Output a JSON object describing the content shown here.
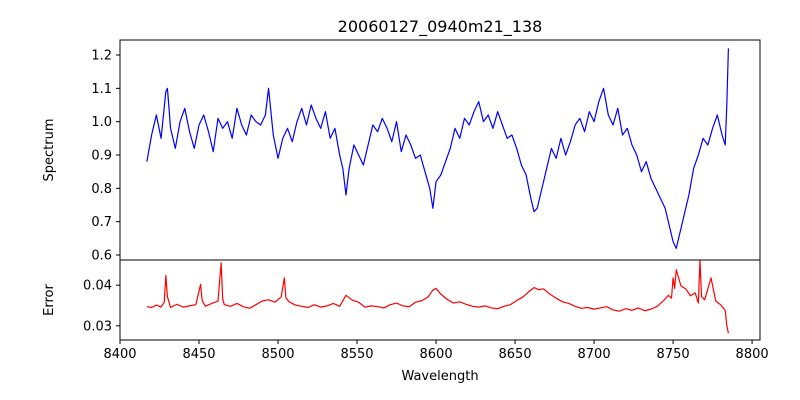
{
  "chart_data": {
    "type": "line",
    "title": "20060127_0940m21_138",
    "xlabel": "Wavelength",
    "xlim": [
      8400,
      8805
    ],
    "x_ticks": [
      "8400",
      "8450",
      "8500",
      "8550",
      "8600",
      "8650",
      "8700",
      "8750",
      "8800"
    ],
    "grid": false,
    "panels": [
      {
        "name": "spectrum-panel",
        "ylabel": "Spectrum",
        "ylim": [
          0.585,
          1.245
        ],
        "y_ticks": [
          "0.6",
          "0.7",
          "0.8",
          "0.9",
          "1.0",
          "1.1",
          "1.2"
        ],
        "series": [
          {
            "color": "#0000ff",
            "x": [
              8417,
              8420,
              8423,
              8426,
              8429,
              8430,
              8432,
              8435,
              8438,
              8441,
              8444,
              8447,
              8450,
              8453,
              8456,
              8459,
              8462,
              8465,
              8468,
              8471,
              8474,
              8477,
              8480,
              8483,
              8486,
              8489,
              8492,
              8494,
              8497,
              8500,
              8503,
              8506,
              8509,
              8512,
              8515,
              8518,
              8521,
              8524,
              8527,
              8530,
              8533,
              8536,
              8539,
              8541,
              8543,
              8545,
              8548,
              8551,
              8554,
              8557,
              8560,
              8563,
              8566,
              8569,
              8572,
              8575,
              8578,
              8581,
              8584,
              8587,
              8590,
              8593,
              8596,
              8598,
              8600,
              8603,
              8606,
              8609,
              8612,
              8615,
              8618,
              8621,
              8624,
              8627,
              8630,
              8633,
              8636,
              8639,
              8642,
              8645,
              8648,
              8651,
              8654,
              8657,
              8660,
              8662,
              8664,
              8667,
              8670,
              8673,
              8676,
              8679,
              8682,
              8685,
              8688,
              8691,
              8694,
              8697,
              8700,
              8703,
              8706,
              8709,
              8712,
              8715,
              8718,
              8721,
              8724,
              8727,
              8730,
              8733,
              8736,
              8739,
              8742,
              8745,
              8748,
              8750,
              8752,
              8754,
              8757,
              8760,
              8763,
              8766,
              8769,
              8772,
              8775,
              8778,
              8781,
              8783,
              8784,
              8785
            ],
            "y": [
              0.88,
              0.96,
              1.02,
              0.95,
              1.09,
              1.1,
              0.98,
              0.92,
              1.0,
              1.04,
              0.97,
              0.92,
              0.99,
              1.02,
              0.97,
              0.91,
              1.01,
              0.98,
              1.0,
              0.95,
              1.04,
              0.99,
              0.96,
              1.02,
              1.0,
              0.99,
              1.02,
              1.1,
              0.96,
              0.89,
              0.95,
              0.98,
              0.94,
              1.0,
              1.04,
              0.99,
              1.05,
              1.01,
              0.98,
              1.03,
              0.95,
              0.98,
              0.9,
              0.86,
              0.78,
              0.86,
              0.93,
              0.9,
              0.87,
              0.93,
              0.99,
              0.97,
              1.01,
              0.98,
              0.94,
              1.0,
              0.91,
              0.96,
              0.93,
              0.89,
              0.9,
              0.85,
              0.8,
              0.74,
              0.82,
              0.84,
              0.88,
              0.92,
              0.98,
              0.95,
              1.01,
              0.99,
              1.03,
              1.06,
              1.0,
              1.02,
              0.98,
              1.03,
              0.99,
              0.95,
              0.96,
              0.92,
              0.87,
              0.84,
              0.77,
              0.73,
              0.74,
              0.8,
              0.86,
              0.92,
              0.89,
              0.95,
              0.9,
              0.94,
              0.99,
              1.01,
              0.97,
              1.03,
              1.0,
              1.06,
              1.1,
              1.02,
              0.99,
              1.04,
              0.96,
              0.98,
              0.93,
              0.9,
              0.85,
              0.88,
              0.83,
              0.8,
              0.77,
              0.74,
              0.68,
              0.64,
              0.62,
              0.66,
              0.72,
              0.78,
              0.86,
              0.9,
              0.95,
              0.93,
              0.98,
              1.02,
              0.96,
              0.93,
              1.05,
              1.22
            ]
          }
        ]
      },
      {
        "name": "error-panel",
        "ylabel": "Error",
        "ylim": [
          0.0265,
          0.0462
        ],
        "y_ticks": [
          "0.03",
          "0.04"
        ],
        "series": [
          {
            "color": "#ff0000",
            "x": [
              8417,
              8420,
              8423,
              8426,
              8428,
              8429,
              8430,
              8432,
              8436,
              8440,
              8444,
              8448,
              8451,
              8452,
              8454,
              8458,
              8462,
              8464,
              8465,
              8466,
              8470,
              8474,
              8478,
              8482,
              8486,
              8490,
              8494,
              8498,
              8502,
              8504,
              8505,
              8507,
              8511,
              8515,
              8519,
              8523,
              8527,
              8531,
              8535,
              8539,
              8543,
              8547,
              8551,
              8555,
              8559,
              8563,
              8567,
              8571,
              8575,
              8579,
              8583,
              8587,
              8591,
              8595,
              8598,
              8600,
              8603,
              8607,
              8611,
              8615,
              8619,
              8623,
              8627,
              8631,
              8635,
              8639,
              8643,
              8647,
              8651,
              8655,
              8659,
              8662,
              8665,
              8668,
              8672,
              8676,
              8680,
              8684,
              8688,
              8692,
              8696,
              8700,
              8704,
              8708,
              8712,
              8716,
              8720,
              8724,
              8728,
              8732,
              8736,
              8740,
              8744,
              8747,
              8749,
              8750,
              8751,
              8752,
              8755,
              8758,
              8761,
              8764,
              8766,
              8767,
              8768,
              8770,
              8774,
              8777,
              8780,
              8783,
              8784,
              8785
            ],
            "y": [
              0.0347,
              0.0345,
              0.0351,
              0.0346,
              0.0358,
              0.0424,
              0.0372,
              0.0345,
              0.0353,
              0.0346,
              0.0349,
              0.0352,
              0.0402,
              0.0362,
              0.0348,
              0.0355,
              0.0361,
              0.0455,
              0.0366,
              0.0352,
              0.0348,
              0.0355,
              0.0347,
              0.0343,
              0.0352,
              0.0361,
              0.0364,
              0.0358,
              0.0371,
              0.0418,
              0.0368,
              0.0359,
              0.0351,
              0.0348,
              0.0345,
              0.0352,
              0.0346,
              0.0349,
              0.0355,
              0.0348,
              0.0375,
              0.0363,
              0.0358,
              0.0346,
              0.0349,
              0.0347,
              0.0344,
              0.0352,
              0.0356,
              0.0349,
              0.0347,
              0.0358,
              0.0362,
              0.0371,
              0.0388,
              0.0392,
              0.0378,
              0.0365,
              0.0356,
              0.0359,
              0.0353,
              0.0348,
              0.0346,
              0.0349,
              0.0344,
              0.0342,
              0.0348,
              0.0352,
              0.0362,
              0.0371,
              0.0385,
              0.0394,
              0.0389,
              0.0391,
              0.0378,
              0.0368,
              0.0359,
              0.0355,
              0.0348,
              0.0343,
              0.0345,
              0.0341,
              0.0344,
              0.0347,
              0.0339,
              0.0336,
              0.0342,
              0.0338,
              0.0344,
              0.0337,
              0.0341,
              0.0348,
              0.0362,
              0.0375,
              0.0368,
              0.0418,
              0.0392,
              0.0438,
              0.0398,
              0.0391,
              0.0374,
              0.0381,
              0.0356,
              0.0462,
              0.0372,
              0.0364,
              0.0418,
              0.0361,
              0.0352,
              0.0338,
              0.0301,
              0.0282
            ]
          }
        ]
      }
    ]
  }
}
